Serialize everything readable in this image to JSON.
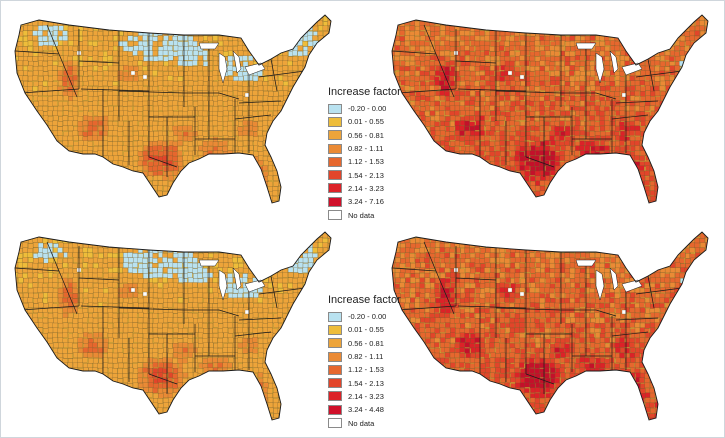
{
  "figure": {
    "panels": [
      {
        "id": "top-left",
        "color_level": 1
      },
      {
        "id": "top-right",
        "color_level": 3
      },
      {
        "id": "bottom-left",
        "color_level": 1
      },
      {
        "id": "bottom-right",
        "color_level": 3
      }
    ]
  },
  "legend_top": {
    "title": "Increase factor",
    "items": [
      {
        "label": "-0.20 - 0.00",
        "color": "#b9e2f0"
      },
      {
        "label": "0.01 - 0.55",
        "color": "#eebd3a"
      },
      {
        "label": "0.56 - 0.81",
        "color": "#eda43a"
      },
      {
        "label": "0.82 - 1.11",
        "color": "#ea8a35"
      },
      {
        "label": "1.12 - 1.53",
        "color": "#e6672e"
      },
      {
        "label": "1.54 - 2.13",
        "color": "#e2452a"
      },
      {
        "label": "2.14 - 3.23",
        "color": "#dc2228"
      },
      {
        "label": "3.24 - 7.16",
        "color": "#d0102a"
      },
      {
        "label": "No data",
        "color": "#ffffff"
      }
    ]
  },
  "legend_bottom": {
    "title": "Increase factor",
    "items": [
      {
        "label": "-0.20 - 0.00",
        "color": "#b9e2f0"
      },
      {
        "label": "0.01 - 0.55",
        "color": "#eebd3a"
      },
      {
        "label": "0.56 - 0.81",
        "color": "#eda43a"
      },
      {
        "label": "0.82 - 1.11",
        "color": "#ea8a35"
      },
      {
        "label": "1.12 - 1.53",
        "color": "#e6672e"
      },
      {
        "label": "1.54 - 2.13",
        "color": "#e2452a"
      },
      {
        "label": "2.14 - 3.23",
        "color": "#dc2228"
      },
      {
        "label": "3.24 - 4.48",
        "color": "#d0102a"
      },
      {
        "label": "No data",
        "color": "#ffffff"
      }
    ]
  },
  "colors": {
    "county_border": "#6e5a2c",
    "state_border": "#1a1a1a",
    "cool": "#b9e2f0",
    "low": "#eebd3a",
    "mid": "#ea8a35",
    "high": "#dc2228",
    "hot": "#c4102a",
    "no_data": "#ffffff",
    "figure_border": "#cfd6dc"
  }
}
